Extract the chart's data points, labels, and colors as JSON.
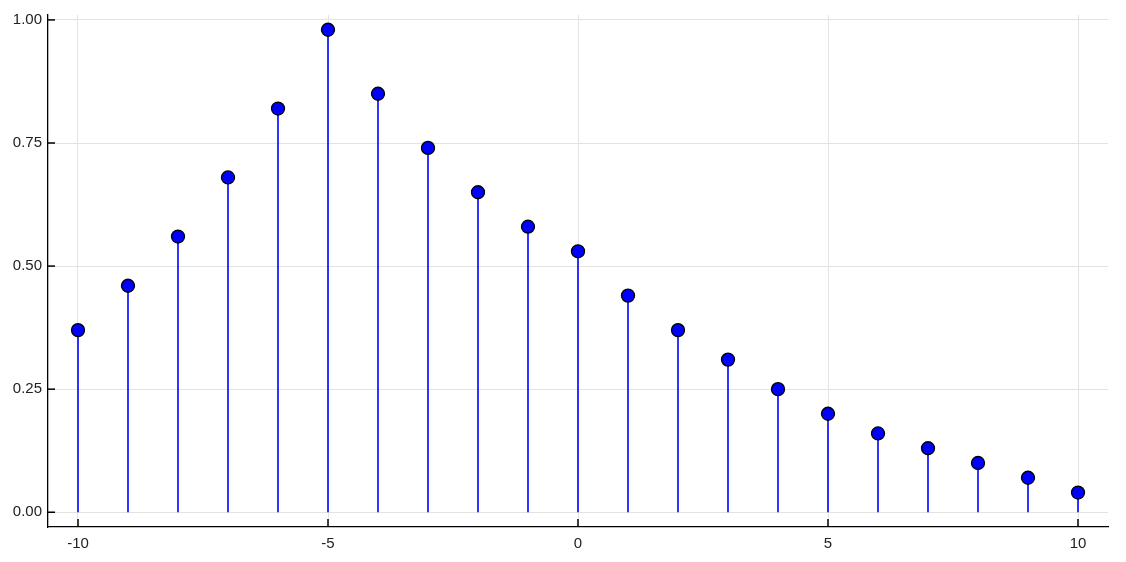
{
  "chart_data": {
    "type": "lollipop",
    "x": [
      -10,
      -9,
      -8,
      -7,
      -6,
      -5,
      -4,
      -3,
      -2,
      -1,
      0,
      1,
      2,
      3,
      4,
      5,
      6,
      7,
      8,
      9,
      10
    ],
    "values": [
      0.37,
      0.46,
      0.56,
      0.68,
      0.82,
      0.98,
      0.85,
      0.74,
      0.65,
      0.58,
      0.53,
      0.44,
      0.37,
      0.31,
      0.25,
      0.2,
      0.16,
      0.13,
      0.1,
      0.07,
      0.04
    ],
    "color": "#0000ff",
    "marker": "circle",
    "xlim": [
      -10.6,
      10.6
    ],
    "ylim": [
      -0.03,
      1.01
    ],
    "xticks": [
      -10,
      -5,
      0,
      5,
      10
    ],
    "yticks": [
      {
        "value": 0,
        "label": "0.00"
      },
      {
        "value": 0.25,
        "label": "0.25"
      },
      {
        "value": 0.5,
        "label": "0.50"
      },
      {
        "value": 0.75,
        "label": "0.75"
      },
      {
        "value": 1,
        "label": "1.00"
      }
    ],
    "grid": true
  }
}
